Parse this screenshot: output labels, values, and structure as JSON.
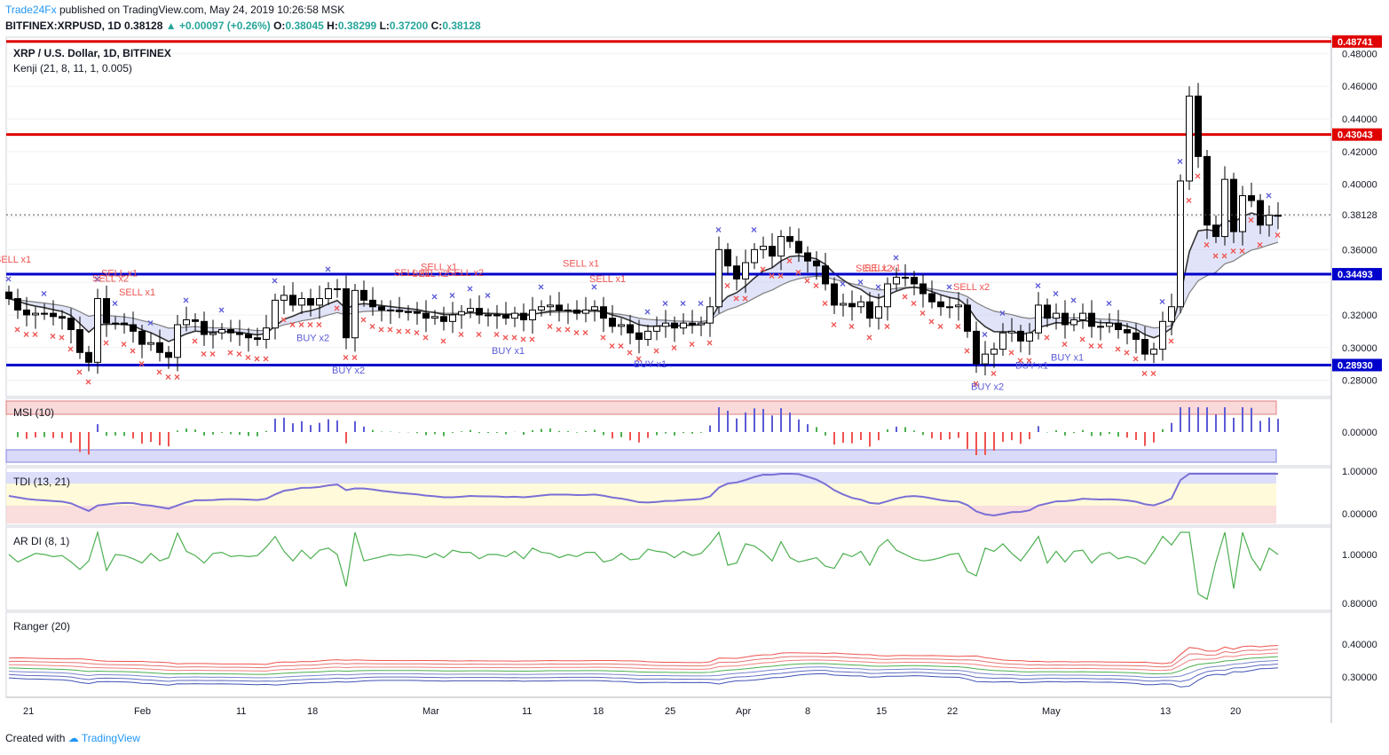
{
  "header": {
    "brand": "Trade24Fx",
    "published": "published on TradingView.com, May 24, 2019 10:26:58 MSK",
    "symbol": "BITFINEX:XRPUSD, 1D",
    "last": "0.38128",
    "change": "+0.00097 (+0.26%)",
    "o_label": "O:",
    "o": "0.38045",
    "h_label": "H:",
    "h": "0.38299",
    "l_label": "L:",
    "l": "0.37200",
    "c_label": "C:",
    "c": "0.38128"
  },
  "footer": {
    "created": "Created with",
    "tv": "TradingView"
  },
  "colors": {
    "up": "#ffffff",
    "down": "#000000",
    "sell": "#ef5350",
    "buy": "#5b5bd6",
    "red_line": "#e00000",
    "blue_line": "#0000cc",
    "price_tag_red": "#e00000",
    "price_tag_blue": "#0000cc"
  },
  "chart_data": {
    "type": "candlestick",
    "title": "XRP / U.S. Dollar, 1D, BITFINEX",
    "indicator": "Kenji (21, 8, 11, 1, 0.005)",
    "ylim": [
      0.27,
      0.49
    ],
    "y_ticks": [
      "0.48000",
      "0.46000",
      "0.44000",
      "0.42000",
      "0.40000",
      "0.38128",
      "0.36000",
      "0.34493",
      "0.32000",
      "0.30000",
      "0.28930",
      "0.28000"
    ],
    "x_labels": [
      "21",
      "Feb",
      "11",
      "18",
      "Mar",
      "11",
      "18",
      "25",
      "Apr",
      "8",
      "15",
      "22",
      "May",
      "13",
      "20"
    ],
    "horizontal_lines": [
      {
        "value": 0.48741,
        "color": "red",
        "label": "0.48741"
      },
      {
        "value": 0.43043,
        "color": "red",
        "label": "0.43043"
      },
      {
        "value": 0.34493,
        "color": "blue",
        "label": "0.34493"
      },
      {
        "value": 0.2893,
        "color": "blue",
        "label": "0.28930"
      }
    ],
    "current_price": {
      "value": 0.38128,
      "label": "0.38128"
    },
    "closes": [
      0.33,
      0.323,
      0.32,
      0.321,
      0.321,
      0.319,
      0.318,
      0.311,
      0.297,
      0.291,
      0.33,
      0.315,
      0.315,
      0.314,
      0.31,
      0.302,
      0.303,
      0.297,
      0.294,
      0.314,
      0.317,
      0.316,
      0.308,
      0.309,
      0.311,
      0.309,
      0.308,
      0.306,
      0.305,
      0.312,
      0.329,
      0.332,
      0.326,
      0.33,
      0.326,
      0.33,
      0.336,
      0.336,
      0.306,
      0.335,
      0.329,
      0.325,
      0.323,
      0.323,
      0.322,
      0.322,
      0.321,
      0.318,
      0.319,
      0.316,
      0.32,
      0.322,
      0.324,
      0.32,
      0.32,
      0.32,
      0.318,
      0.321,
      0.317,
      0.323,
      0.325,
      0.326,
      0.323,
      0.323,
      0.321,
      0.323,
      0.325,
      0.318,
      0.313,
      0.314,
      0.309,
      0.305,
      0.31,
      0.313,
      0.315,
      0.312,
      0.315,
      0.314,
      0.315,
      0.325,
      0.36,
      0.35,
      0.342,
      0.352,
      0.36,
      0.362,
      0.356,
      0.368,
      0.365,
      0.358,
      0.353,
      0.35,
      0.339,
      0.326,
      0.327,
      0.325,
      0.328,
      0.318,
      0.325,
      0.339,
      0.343,
      0.343,
      0.339,
      0.333,
      0.328,
      0.325,
      0.325,
      0.326,
      0.31,
      0.29,
      0.296,
      0.299,
      0.309,
      0.31,
      0.304,
      0.309,
      0.326,
      0.318,
      0.321,
      0.314,
      0.317,
      0.321,
      0.313,
      0.313,
      0.315,
      0.311,
      0.309,
      0.305,
      0.296,
      0.299,
      0.316,
      0.325,
      0.402,
      0.454,
      0.417,
      0.375,
      0.368,
      0.403,
      0.371,
      0.393,
      0.39,
      0.375,
      0.381,
      0.381
    ],
    "signals": [
      {
        "label": "SELL x1",
        "i": 0
      },
      {
        "label": "SELL x2",
        "i": 11
      },
      {
        "label": "SELL x1",
        "i": 12
      },
      {
        "label": "SELL x1",
        "i": 14
      },
      {
        "label": "BUY x2",
        "i": 34
      },
      {
        "label": "BUY x2",
        "i": 38
      },
      {
        "label": "SELL x1",
        "i": 45
      },
      {
        "label": "SELL x2",
        "i": 47
      },
      {
        "label": "SELL x1",
        "i": 48
      },
      {
        "label": "SELL x2",
        "i": 51
      },
      {
        "label": "BUY x1",
        "i": 56
      },
      {
        "label": "SELL x1",
        "i": 64
      },
      {
        "label": "SELL x1",
        "i": 67
      },
      {
        "label": "BUY x1",
        "i": 72
      },
      {
        "label": "SELL x2",
        "i": 97
      },
      {
        "label": "SELL x1",
        "i": 98
      },
      {
        "label": "SELL x2",
        "i": 108
      },
      {
        "label": "BUY x2",
        "i": 110
      },
      {
        "label": "BUY x1",
        "i": 115
      },
      {
        "label": "BUY x1",
        "i": 119
      }
    ],
    "panels": [
      {
        "name": "MSI (10)",
        "ticks": [
          "0.00000"
        ]
      },
      {
        "name": "TDI (13, 21)",
        "ticks": [
          "1.00000",
          "0.00000"
        ]
      },
      {
        "name": "AR DI (8, 1)",
        "ticks": [
          "1.00000",
          "0.80000"
        ]
      },
      {
        "name": "Ranger (20)",
        "ticks": [
          "0.40000",
          "0.30000"
        ]
      }
    ]
  }
}
